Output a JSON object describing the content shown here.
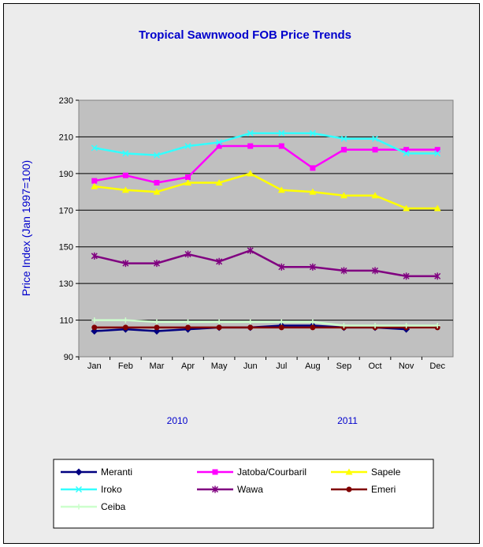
{
  "chart_data": {
    "type": "line",
    "title": "Tropical Sawnwood FOB Price Trends",
    "ylabel": "Price Index  (Jan 1997=100)",
    "xlabel": "",
    "ylim": [
      90,
      230
    ],
    "yticks": [
      90,
      110,
      130,
      150,
      170,
      190,
      210,
      230
    ],
    "categories": [
      "Jan",
      "Feb",
      "Mar",
      "Apr",
      "May",
      "Jun",
      "Jul",
      "Aug",
      "Sep",
      "Oct",
      "Nov",
      "Dec"
    ],
    "year_labels": [
      "2010",
      "2011"
    ],
    "grid": "horizontal",
    "legend_position": "bottom",
    "series": [
      {
        "name": "Meranti",
        "color": "#000080",
        "marker": "diamond",
        "values": [
          104,
          105,
          104,
          105,
          106,
          106,
          107,
          107,
          106,
          106,
          105,
          null
        ]
      },
      {
        "name": "Jatoba/Courbaril",
        "color": "#ff00ff",
        "marker": "square",
        "values": [
          186,
          189,
          185,
          188,
          205,
          205,
          205,
          193,
          203,
          203,
          203,
          203
        ]
      },
      {
        "name": "Sapele",
        "color": "#ffff00",
        "marker": "triangle",
        "values": [
          183,
          181,
          180,
          185,
          185,
          190,
          181,
          180,
          178,
          178,
          171,
          171
        ]
      },
      {
        "name": "Iroko",
        "color": "#33ffff",
        "marker": "x",
        "values": [
          204,
          201,
          200,
          205,
          207,
          212,
          212,
          212,
          209,
          209,
          201,
          201
        ]
      },
      {
        "name": "Wawa",
        "color": "#800080",
        "marker": "star",
        "values": [
          145,
          141,
          141,
          146,
          142,
          148,
          139,
          139,
          137,
          137,
          134,
          134
        ]
      },
      {
        "name": "Emeri",
        "color": "#800000",
        "marker": "circle",
        "values": [
          106,
          106,
          106,
          106,
          106,
          106,
          106,
          106,
          106,
          106,
          106,
          106
        ]
      },
      {
        "name": "Ceiba",
        "color": "#ccffcc",
        "marker": "plus",
        "values": [
          110,
          110,
          109,
          109,
          109,
          109,
          109,
          109,
          107,
          107,
          107,
          107
        ]
      }
    ]
  }
}
